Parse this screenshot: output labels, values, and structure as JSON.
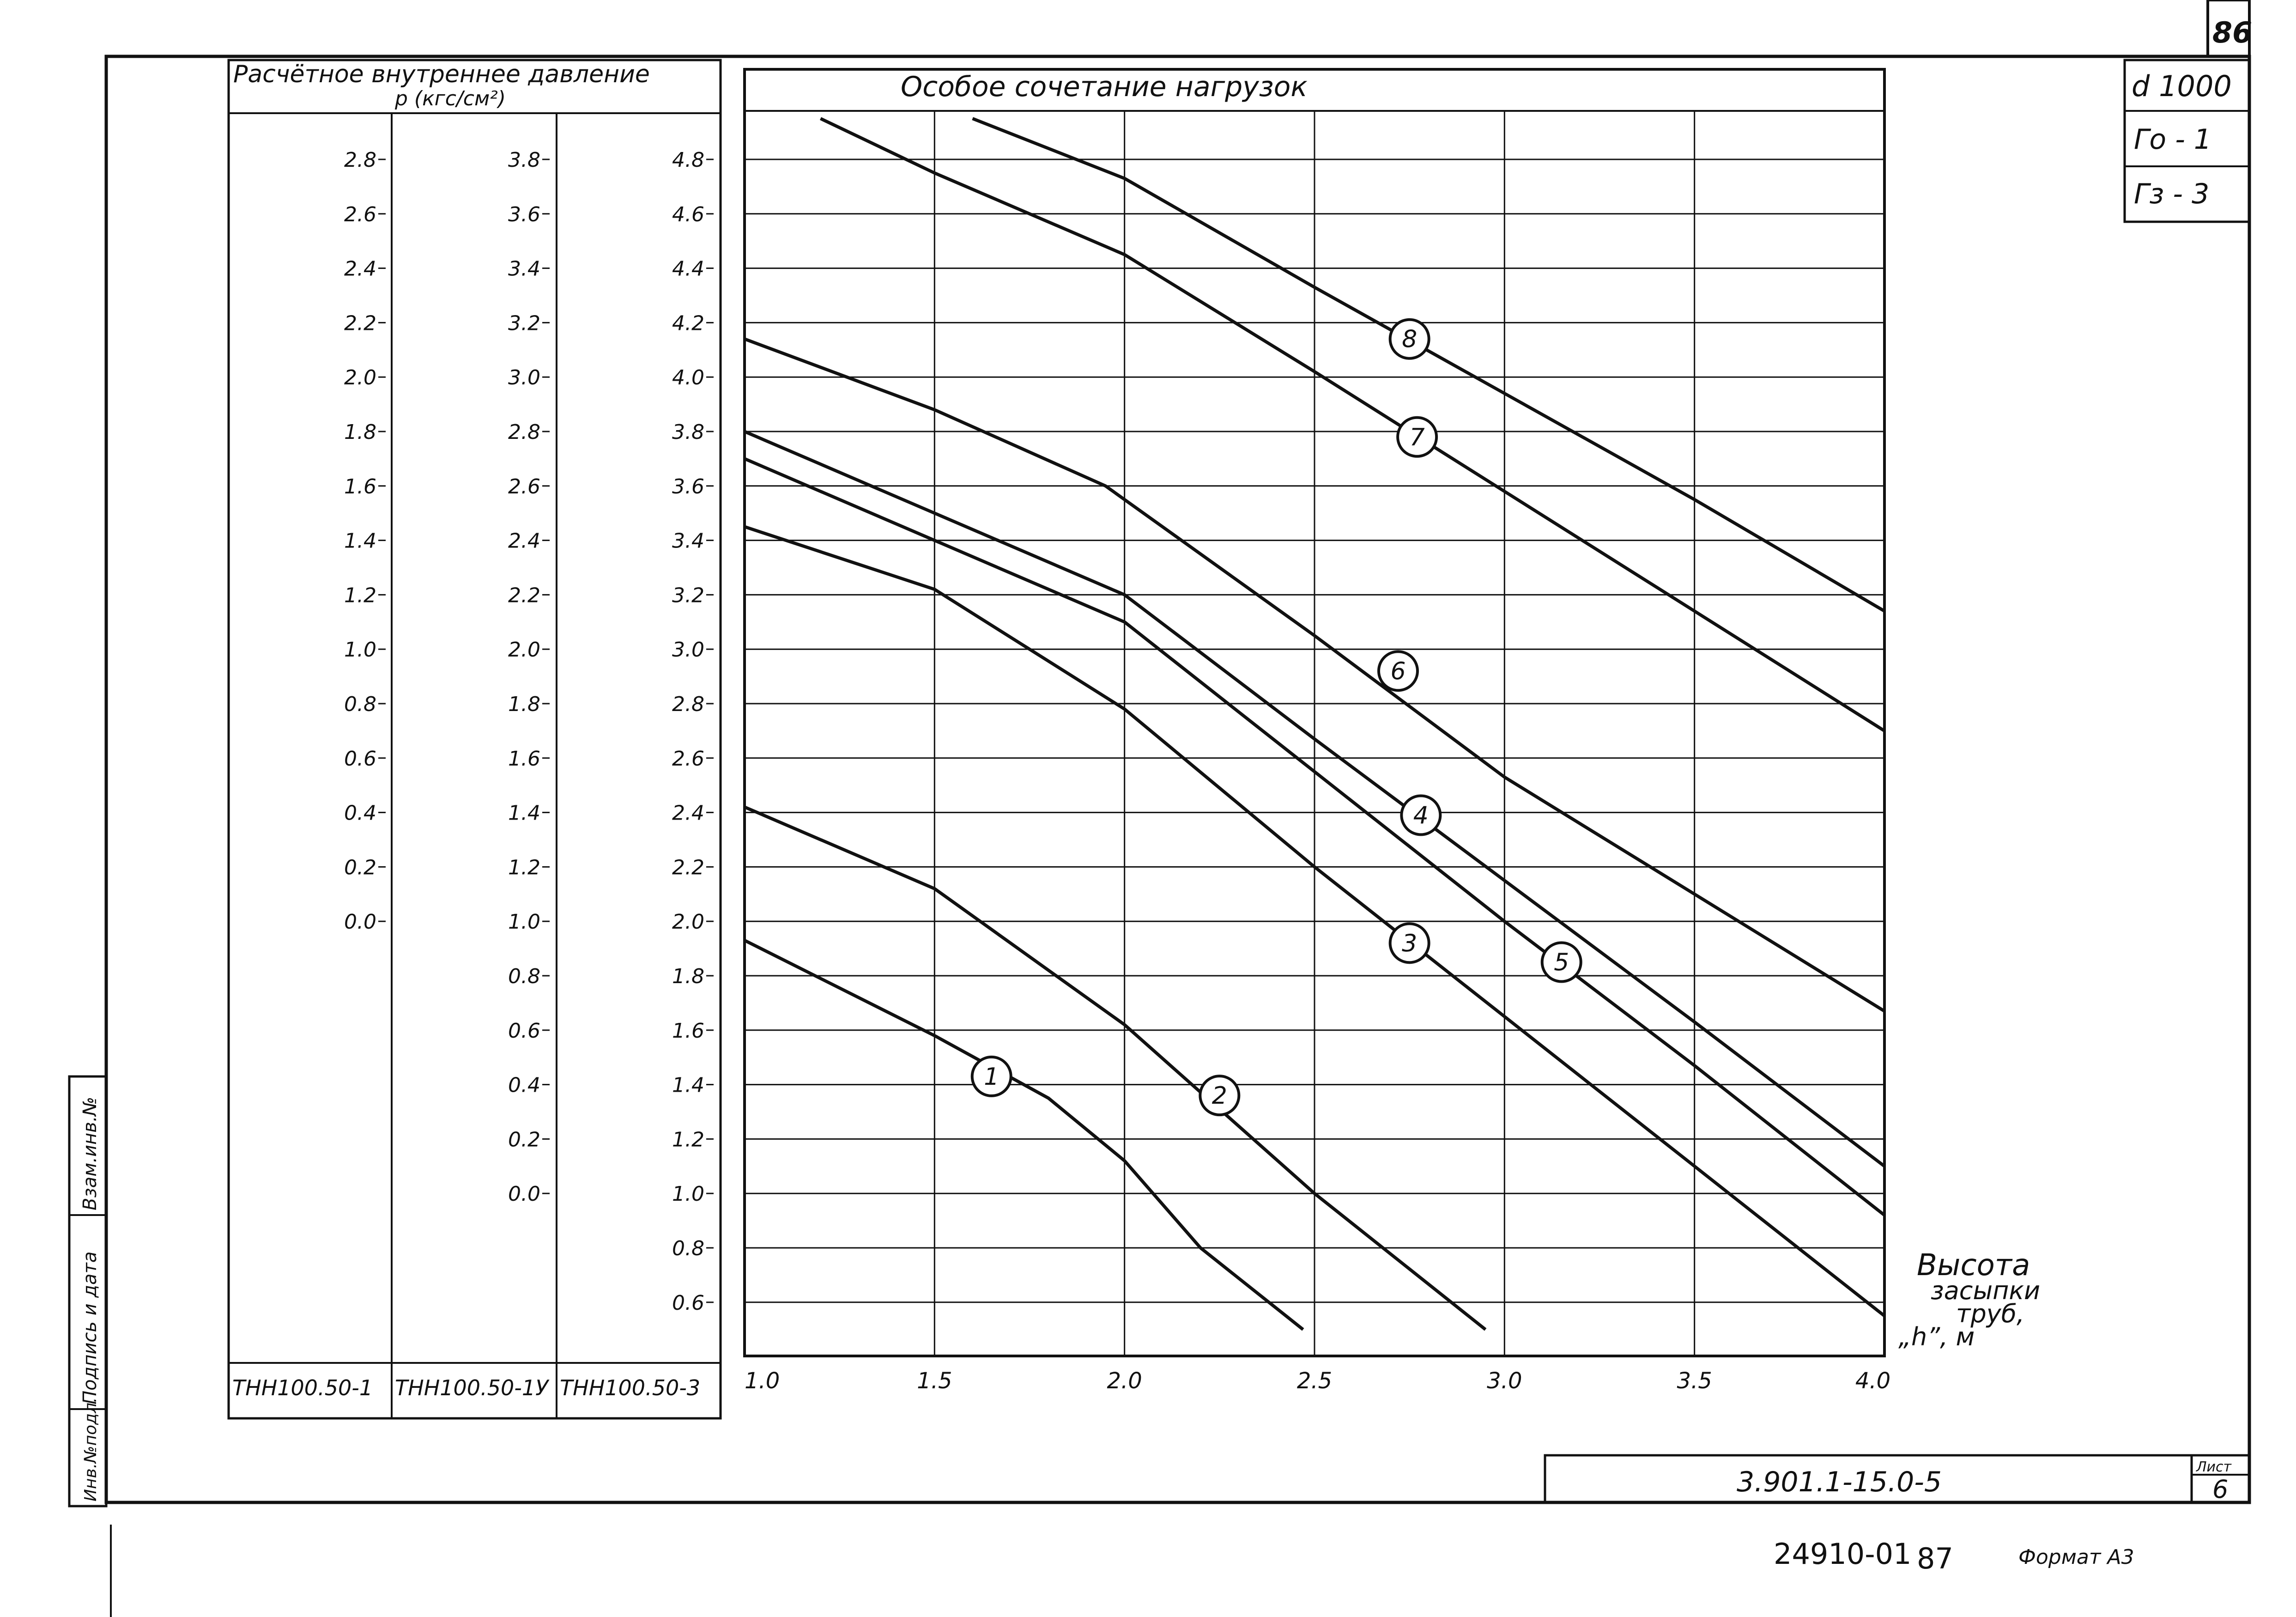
{
  "page_number": "86",
  "tags": {
    "diameter": "d 1000",
    "ga": "Го - 1",
    "gz": "Гз - 3"
  },
  "pressure_header": "Расчётное внутреннее давление",
  "pressure_unit": "р (кгс/см²)",
  "pipe_classes": [
    "ТНН100.50-1",
    "ТНН100.50-1У",
    "ТНН100.50-3"
  ],
  "scales": [
    [
      "2.8",
      "2.6",
      "2.4",
      "2.2",
      "2.0",
      "1.8",
      "1.6",
      "1.4",
      "1.2",
      "1.0",
      "0.8",
      "0.6",
      "0.4",
      "0.2",
      "0.0"
    ],
    [
      "3.8",
      "3.6",
      "3.4",
      "3.2",
      "3.0",
      "2.8",
      "2.6",
      "2.4",
      "2.2",
      "2.0",
      "1.8",
      "1.6",
      "1.4",
      "1.2",
      "1.0",
      "0.8",
      "0.6",
      "0.4",
      "0.2",
      "0.0"
    ],
    [
      "4.8",
      "4.6",
      "4.4",
      "4.2",
      "4.0",
      "3.8",
      "3.6",
      "3.4",
      "3.2",
      "3.0",
      "2.8",
      "2.6",
      "2.4",
      "2.2",
      "2.0",
      "1.8",
      "1.6",
      "1.4",
      "1.2",
      "1.0",
      "0.8",
      "0.6"
    ]
  ],
  "side_stamp": {
    "inv_podl": "Инв.№подл.",
    "podpis": "Подпись и дата",
    "vzam": "Взам.инв.№"
  },
  "title_block": {
    "doc_code": "3.901.1-15.0-5",
    "sheet_label": "Лист",
    "sheet_number": "6"
  },
  "footer": {
    "archive_no": "24910-01",
    "page": "87",
    "format": "Формат А3"
  },
  "chart_data": {
    "type": "line",
    "title": "Особое сочетание нагрузок",
    "xlabel": "Высота засыпки труб, \"h\", м",
    "ylabel": "Расчётное внутреннее давление р (кгс/см²)",
    "xlim": [
      1.0,
      4.0
    ],
    "ylim": [
      0.5,
      4.95
    ],
    "x_ticks": [
      "1.0",
      "1.5",
      "2.0",
      "2.5",
      "3.0",
      "3.5",
      "4.0"
    ],
    "grid": true,
    "series": [
      {
        "name": "1",
        "label_at": [
          1.65,
          1.43
        ],
        "points": [
          [
            1.0,
            1.93
          ],
          [
            1.5,
            1.58
          ],
          [
            1.8,
            1.35
          ],
          [
            2.0,
            1.12
          ],
          [
            2.2,
            0.8
          ],
          [
            2.47,
            0.5
          ]
        ]
      },
      {
        "name": "2",
        "label_at": [
          2.25,
          1.36
        ],
        "points": [
          [
            1.0,
            2.42
          ],
          [
            1.5,
            2.12
          ],
          [
            2.0,
            1.62
          ],
          [
            2.5,
            1.0
          ],
          [
            2.95,
            0.5
          ]
        ]
      },
      {
        "name": "3",
        "label_at": [
          2.75,
          1.92
        ],
        "points": [
          [
            1.0,
            3.45
          ],
          [
            1.5,
            3.22
          ],
          [
            2.0,
            2.78
          ],
          [
            2.5,
            2.2
          ],
          [
            3.0,
            1.65
          ],
          [
            3.5,
            1.1
          ],
          [
            4.0,
            0.55
          ]
        ]
      },
      {
        "name": "4",
        "label_at": [
          2.78,
          2.39
        ],
        "points": [
          [
            1.0,
            3.8
          ],
          [
            1.5,
            3.5
          ],
          [
            2.0,
            3.2
          ],
          [
            2.5,
            2.67
          ],
          [
            3.0,
            2.15
          ],
          [
            3.5,
            1.63
          ],
          [
            4.0,
            1.1
          ]
        ]
      },
      {
        "name": "5",
        "label_at": [
          3.15,
          1.85
        ],
        "points": [
          [
            1.0,
            3.7
          ],
          [
            1.5,
            3.4
          ],
          [
            2.0,
            3.1
          ],
          [
            2.5,
            2.55
          ],
          [
            3.0,
            2.0
          ],
          [
            3.5,
            1.47
          ],
          [
            4.0,
            0.92
          ]
        ]
      },
      {
        "name": "6",
        "label_at": [
          2.72,
          2.92
        ],
        "points": [
          [
            1.0,
            4.14
          ],
          [
            1.5,
            3.88
          ],
          [
            1.95,
            3.6
          ],
          [
            2.5,
            3.05
          ],
          [
            3.0,
            2.53
          ],
          [
            3.5,
            2.1
          ],
          [
            4.0,
            1.67
          ]
        ]
      },
      {
        "name": "7",
        "label_at": [
          2.77,
          3.78
        ],
        "points": [
          [
            1.2,
            4.95
          ],
          [
            1.5,
            4.75
          ],
          [
            2.0,
            4.45
          ],
          [
            2.5,
            4.02
          ],
          [
            3.0,
            3.58
          ],
          [
            3.5,
            3.14
          ],
          [
            4.0,
            2.7
          ]
        ]
      },
      {
        "name": "8",
        "label_at": [
          2.75,
          4.14
        ],
        "points": [
          [
            1.6,
            4.95
          ],
          [
            2.0,
            4.73
          ],
          [
            2.5,
            4.33
          ],
          [
            3.0,
            3.94
          ],
          [
            3.5,
            3.55
          ],
          [
            4.0,
            3.14
          ]
        ]
      }
    ]
  }
}
